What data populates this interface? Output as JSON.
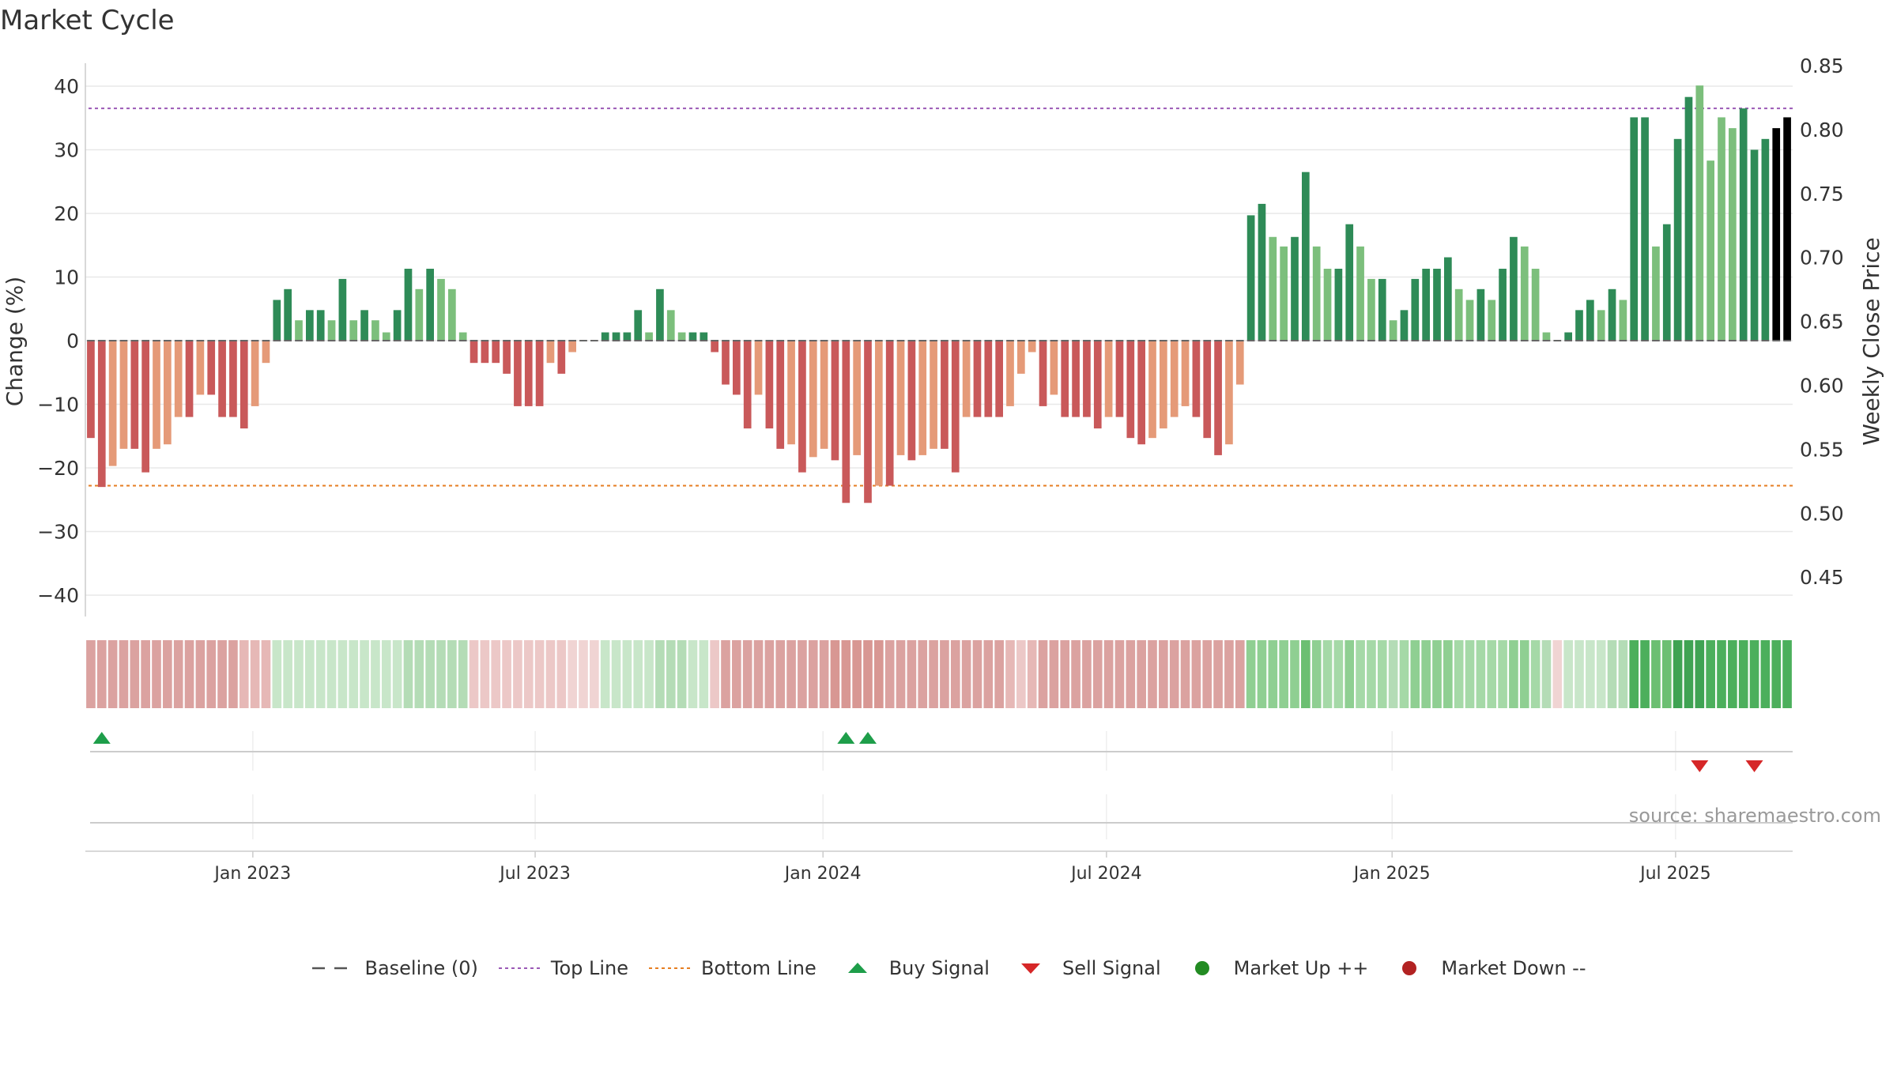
{
  "chart_data": {
    "type": "bar",
    "title": "Market Cycle",
    "ylabel_left": "Change (%)",
    "ylabel_right": "Weekly Close Price",
    "y_ticks_left": [
      "40",
      "30",
      "20",
      "10",
      "0",
      "−10",
      "−20",
      "−30",
      "−40"
    ],
    "y_ticks_right": [
      "0.85",
      "0.80",
      "0.75",
      "0.70",
      "0.65",
      "0.60",
      "0.55",
      "0.50",
      "0.45"
    ],
    "ylim_left": [
      -43,
      43
    ],
    "x_ticks": [
      "Jan 2023",
      "Jul 2023",
      "Jan 2024",
      "Jul 2024",
      "Jan 2025",
      "Jul 2025"
    ],
    "x_tick_weeks": [
      15.3,
      41.1,
      67.4,
      93.3,
      119.4,
      145.3
    ],
    "top_line": 36.5,
    "bottom_line": -22.8,
    "values": [
      -15.3,
      -23,
      -19.7,
      -17,
      -17,
      -20.7,
      -17,
      -16.3,
      -12,
      -12,
      -8.5,
      -8.5,
      -12,
      -12,
      -13.8,
      -10.3,
      -3.5,
      6.4,
      8.1,
      3.2,
      4.8,
      4.8,
      3.2,
      9.7,
      3.2,
      4.8,
      3.2,
      1.3,
      4.8,
      11.3,
      8.1,
      11.3,
      9.7,
      8.1,
      1.3,
      -3.5,
      -3.5,
      -3.5,
      -5.2,
      -10.3,
      -10.3,
      -10.3,
      -3.5,
      -5.2,
      -1.8,
      0,
      0,
      1.3,
      1.3,
      1.3,
      4.8,
      1.3,
      8.1,
      4.8,
      1.3,
      1.3,
      1.3,
      -1.8,
      -6.9,
      -8.5,
      -13.8,
      -8.5,
      -13.8,
      -17,
      -16.3,
      -20.7,
      -18.3,
      -17,
      -18.8,
      -25.5,
      -18,
      -25.5,
      -22.8,
      -22.8,
      -18,
      -18.8,
      -18,
      -17,
      -17,
      -20.7,
      -12,
      -12,
      -12,
      -12,
      -10.3,
      -5.2,
      -1.8,
      -10.3,
      -8.5,
      -12,
      -12,
      -12,
      -13.8,
      -12,
      -12,
      -15.3,
      -16.3,
      -15.3,
      -13.8,
      -12,
      -10.3,
      -12,
      -15.3,
      -18,
      -16.3,
      -6.9,
      19.7,
      21.5,
      16.3,
      14.8,
      16.3,
      26.5,
      14.8,
      11.3,
      11.3,
      18.3,
      14.8,
      9.7,
      9.7,
      3.2,
      4.8,
      9.7,
      11.3,
      11.3,
      13.1,
      8.1,
      6.4,
      8.1,
      6.4,
      11.3,
      16.3,
      14.8,
      11.3,
      1.3,
      0,
      1.3,
      4.8,
      6.4,
      4.8,
      8.1,
      6.4,
      35.1,
      35.1,
      14.8,
      18.3,
      31.7,
      38.3,
      40.1,
      28.3,
      35.1,
      33.4,
      36.5,
      30,
      31.7,
      33.4,
      35.1
    ],
    "bar_colors": [
      "#c9595a",
      "#c9595a",
      "#e59a78",
      "#e59a78",
      "#c9595a",
      "#c9595a",
      "#e59a78",
      "#e59a78",
      "#e59a78",
      "#c9595a",
      "#e59a78",
      "#c9595a",
      "#c9595a",
      "#c9595a",
      "#c9595a",
      "#e59a78",
      "#e59a78",
      "#2e8b57",
      "#2e8b57",
      "#7cbf7c",
      "#2e8b57",
      "#2e8b57",
      "#7cbf7c",
      "#2e8b57",
      "#7cbf7c",
      "#2e8b57",
      "#7cbf7c",
      "#7cbf7c",
      "#2e8b57",
      "#2e8b57",
      "#7cbf7c",
      "#2e8b57",
      "#7cbf7c",
      "#7cbf7c",
      "#7cbf7c",
      "#c9595a",
      "#c9595a",
      "#c9595a",
      "#c9595a",
      "#c9595a",
      "#c9595a",
      "#c9595a",
      "#e59a78",
      "#c9595a",
      "#e59a78",
      "#c9595a",
      "#c9595a",
      "#2e8b57",
      "#2e8b57",
      "#2e8b57",
      "#2e8b57",
      "#7cbf7c",
      "#2e8b57",
      "#7cbf7c",
      "#7cbf7c",
      "#2e8b57",
      "#2e8b57",
      "#c9595a",
      "#c9595a",
      "#c9595a",
      "#c9595a",
      "#e59a78",
      "#c9595a",
      "#c9595a",
      "#e59a78",
      "#c9595a",
      "#e59a78",
      "#e59a78",
      "#c9595a",
      "#c9595a",
      "#e59a78",
      "#c9595a",
      "#e59a78",
      "#c9595a",
      "#e59a78",
      "#c9595a",
      "#e59a78",
      "#e59a78",
      "#c9595a",
      "#c9595a",
      "#e59a78",
      "#c9595a",
      "#c9595a",
      "#c9595a",
      "#e59a78",
      "#e59a78",
      "#e59a78",
      "#c9595a",
      "#e59a78",
      "#c9595a",
      "#c9595a",
      "#c9595a",
      "#c9595a",
      "#e59a78",
      "#c9595a",
      "#c9595a",
      "#c9595a",
      "#e59a78",
      "#e59a78",
      "#e59a78",
      "#e59a78",
      "#c9595a",
      "#c9595a",
      "#c9595a",
      "#e59a78",
      "#e59a78",
      "#2e8b57",
      "#2e8b57",
      "#7cbf7c",
      "#7cbf7c",
      "#2e8b57",
      "#2e8b57",
      "#7cbf7c",
      "#7cbf7c",
      "#2e8b57",
      "#2e8b57",
      "#7cbf7c",
      "#7cbf7c",
      "#2e8b57",
      "#7cbf7c",
      "#2e8b57",
      "#2e8b57",
      "#2e8b57",
      "#2e8b57",
      "#2e8b57",
      "#7cbf7c",
      "#7cbf7c",
      "#2e8b57",
      "#7cbf7c",
      "#2e8b57",
      "#2e8b57",
      "#7cbf7c",
      "#7cbf7c",
      "#7cbf7c",
      "#7cbf7c",
      "#2e8b57",
      "#2e8b57",
      "#2e8b57",
      "#7cbf7c",
      "#2e8b57",
      "#7cbf7c",
      "#2e8b57",
      "#2e8b57",
      "#7cbf7c",
      "#2e8b57",
      "#2e8b57",
      "#2e8b57",
      "#7cbf7c",
      "#7cbf7c",
      "#7cbf7c",
      "#7cbf7c",
      "#2e8b57",
      "#2e8b57",
      "#2e8b57"
    ],
    "strip_colors": [
      "#dba2a0",
      "#dba2a0",
      "#dba2a0",
      "#dba2a0",
      "#dba2a0",
      "#dba2a0",
      "#dba2a0",
      "#dba2a0",
      "#dba2a0",
      "#dba2a0",
      "#dba2a0",
      "#dba2a0",
      "#dba2a0",
      "#dba2a0",
      "#e6b8b6",
      "#e6b8b6",
      "#e6b8b6",
      "#c8e6c9",
      "#c8e6c9",
      "#c8e6c9",
      "#c8e6c9",
      "#c8e6c9",
      "#c8e6c9",
      "#c8e6c9",
      "#c8e6c9",
      "#c8e6c9",
      "#c8e6c9",
      "#c8e6c9",
      "#c8e6c9",
      "#b4dcb6",
      "#b4dcb6",
      "#b4dcb6",
      "#b4dcb6",
      "#b4dcb6",
      "#b4dcb6",
      "#ecc8c7",
      "#ecc8c7",
      "#ecc8c7",
      "#ecc8c7",
      "#ecc8c7",
      "#ecc8c7",
      "#ecc8c7",
      "#ecc8c7",
      "#ecc8c7",
      "#f0d4d3",
      "#f0d4d3",
      "#f0d4d3",
      "#c8e6c9",
      "#c8e6c9",
      "#c8e6c9",
      "#c8e6c9",
      "#c8e6c9",
      "#b4dcb6",
      "#b4dcb6",
      "#b4dcb6",
      "#c8e6c9",
      "#c8e6c9",
      "#ecc8c7",
      "#dba2a0",
      "#dba2a0",
      "#dba2a0",
      "#dba2a0",
      "#dba2a0",
      "#dba2a0",
      "#dba2a0",
      "#dba2a0",
      "#dba2a0",
      "#dba2a0",
      "#d89793",
      "#d89793",
      "#d89793",
      "#d89793",
      "#d89793",
      "#dba2a0",
      "#dba2a0",
      "#dba2a0",
      "#dba2a0",
      "#dba2a0",
      "#dba2a0",
      "#dba2a0",
      "#dba2a0",
      "#dba2a0",
      "#dba2a0",
      "#dba2a0",
      "#e6b8b6",
      "#ecc8c7",
      "#e6b8b6",
      "#dba2a0",
      "#dba2a0",
      "#dba2a0",
      "#dba2a0",
      "#dba2a0",
      "#dba2a0",
      "#dba2a0",
      "#dba2a0",
      "#dba2a0",
      "#dba2a0",
      "#dba2a0",
      "#dba2a0",
      "#dba2a0",
      "#dba2a0",
      "#dba2a0",
      "#dba2a0",
      "#dba2a0",
      "#dba2a0",
      "#dba2a0",
      "#8fcf92",
      "#8fcf92",
      "#8fcf92",
      "#8fcf92",
      "#8fcf92",
      "#6cbf72",
      "#8fcf92",
      "#a5d9a7",
      "#a5d9a7",
      "#8fcf92",
      "#a5d9a7",
      "#a5d9a7",
      "#a5d9a7",
      "#b4dcb6",
      "#a5d9a7",
      "#8fcf92",
      "#8fcf92",
      "#8fcf92",
      "#8fcf92",
      "#a5d9a7",
      "#a5d9a7",
      "#a5d9a7",
      "#a5d9a7",
      "#a5d9a7",
      "#8fcf92",
      "#8fcf92",
      "#a5d9a7",
      "#b4dcb6",
      "#f0d4d3",
      "#c8e6c9",
      "#c8e6c9",
      "#c8e6c9",
      "#c8e6c9",
      "#b4dcb6",
      "#b4dcb6",
      "#4caf5c",
      "#4caf5c",
      "#6cbf72",
      "#6cbf72",
      "#3fa353",
      "#3fa353",
      "#3fa353",
      "#4caf5c",
      "#4caf5c",
      "#4caf5c",
      "#4caf5c",
      "#4caf5c",
      "#4caf5c",
      "#4caf5c",
      "#4caf5c"
    ],
    "buy_signals": [
      1,
      69,
      71
    ],
    "sell_signals": [
      147,
      152
    ],
    "legend": [
      {
        "label": "Baseline (0)",
        "symbol": "dash",
        "color": "#555555"
      },
      {
        "label": "Top Line",
        "symbol": "dotted",
        "color": "#9b59b6"
      },
      {
        "label": "Bottom Line",
        "symbol": "dotted",
        "color": "#e67e22"
      },
      {
        "label": "Buy Signal",
        "symbol": "triangle-up",
        "color": "#1e9e4a"
      },
      {
        "label": "Sell Signal",
        "symbol": "triangle-down",
        "color": "#d62728"
      },
      {
        "label": "Market Up ++",
        "symbol": "circle",
        "color": "#228b22"
      },
      {
        "label": "Market Down --",
        "symbol": "circle",
        "color": "#b22222"
      }
    ],
    "source": "source: sharemaestro.com",
    "grid": true
  }
}
